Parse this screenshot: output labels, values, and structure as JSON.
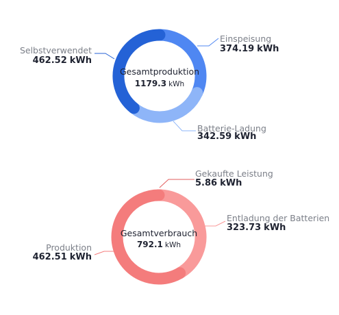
{
  "unit": "kWh",
  "chart_data": [
    {
      "type": "pie",
      "variant": "donut",
      "center_title": "Gesamtproduktion",
      "center_value": "1179.3",
      "center_unit": "kWh",
      "total": 1179.3,
      "slices": [
        {
          "name": "Einspeisung",
          "value": 374.19,
          "value_label": "374.19",
          "color": "#4f87f2"
        },
        {
          "name": "Batterie-Ladung",
          "value": 342.59,
          "value_label": "342.59",
          "color": "#8eb5f8"
        },
        {
          "name": "Selbstverwendet",
          "value": 462.52,
          "value_label": "462.52",
          "color": "#2462d6"
        }
      ]
    },
    {
      "type": "pie",
      "variant": "donut",
      "center_title": "Gesamtverbrauch",
      "center_value": "792.1",
      "center_unit": "kWh",
      "total": 792.1,
      "slices": [
        {
          "name": "Gekaufte Leistung",
          "value": 5.86,
          "value_label": "5.86",
          "color": "#e25d5d"
        },
        {
          "name": "Entladung der Batterien",
          "value": 323.73,
          "value_label": "323.73",
          "color": "#f99a9a"
        },
        {
          "name": "Produktion",
          "value": 462.51,
          "value_label": "462.51",
          "color": "#f47c7c"
        }
      ]
    }
  ]
}
